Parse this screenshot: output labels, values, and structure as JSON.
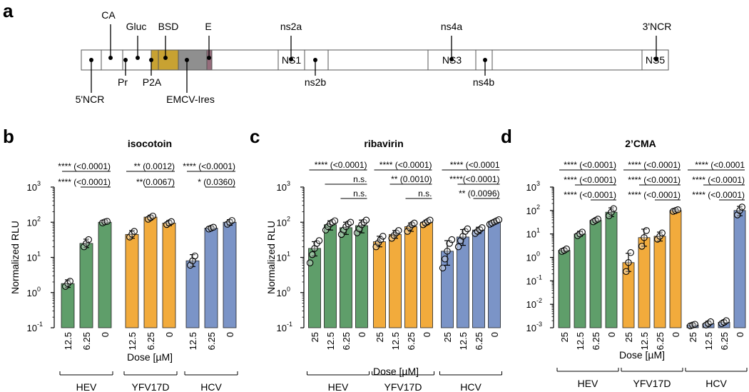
{
  "panel_labels": {
    "a": "a",
    "b": "b",
    "c": "c",
    "d": "d"
  },
  "genome": {
    "segments": [
      {
        "key": "5ncr",
        "label": "",
        "color": "#ffffff"
      },
      {
        "key": "ca",
        "label": "",
        "color": "#ffffff"
      },
      {
        "key": "pr",
        "label": "",
        "color": "#ffffff"
      },
      {
        "key": "gluc",
        "label": "",
        "color": "#c8a232"
      },
      {
        "key": "p2a",
        "label": "",
        "color": "#c8a232"
      },
      {
        "key": "bsd",
        "label": "",
        "color": "#8f8f8f"
      },
      {
        "key": "emcv",
        "label": "",
        "color": "#956c7b"
      },
      {
        "key": "e",
        "label": "",
        "color": "#ffffff"
      },
      {
        "key": "ns1",
        "label": "NS1",
        "color": "#ffffff"
      },
      {
        "key": "ns2a",
        "label": "",
        "color": "#ffffff"
      },
      {
        "key": "ns2b",
        "label": "",
        "color": "#ffffff"
      },
      {
        "key": "ns3",
        "label": "NS3",
        "color": "#ffffff"
      },
      {
        "key": "ns4a",
        "label": "",
        "color": "#ffffff"
      },
      {
        "key": "ns4b",
        "label": "",
        "color": "#ffffff"
      },
      {
        "key": "ns5",
        "label": "NS5",
        "color": "#ffffff"
      },
      {
        "key": "3ncr",
        "label": "",
        "color": "#ffffff"
      }
    ],
    "callouts": [
      {
        "label": "5'NCR",
        "dir": "down"
      },
      {
        "label": "CA",
        "dir": "up"
      },
      {
        "label": "Pr",
        "dir": "down"
      },
      {
        "label": "Gluc",
        "dir": "up"
      },
      {
        "label": "P2A",
        "dir": "down"
      },
      {
        "label": "BSD",
        "dir": "up"
      },
      {
        "label": "EMCV-Ires",
        "dir": "down"
      },
      {
        "label": "E",
        "dir": "up"
      },
      {
        "label": "ns2a",
        "dir": "up"
      },
      {
        "label": "ns2b",
        "dir": "down"
      },
      {
        "label": "ns4a",
        "dir": "up"
      },
      {
        "label": "ns4b",
        "dir": "down"
      },
      {
        "label": "3'NCR",
        "dir": "up"
      }
    ]
  },
  "colors": {
    "HEV": "#5f9e6a",
    "YFV17D": "#f2ab3c",
    "HCV": "#7b94c7"
  },
  "chart_data": [
    {
      "type": "bar",
      "panel": "b",
      "title": "isocotoin",
      "ylabel": "Normalized RLU",
      "xlabel": "Dose [µM]",
      "yscale": "log",
      "ylim": [
        0.1,
        1000
      ],
      "yticks": [
        {
          "base": "10",
          "exp": "-1"
        },
        {
          "base": "10",
          "exp": "0"
        },
        {
          "base": "10",
          "exp": "1"
        },
        {
          "base": "10",
          "exp": "2"
        },
        {
          "base": "10",
          "exp": "3"
        }
      ],
      "groups": [
        {
          "name": "HEV",
          "categories": [
            "12.5",
            "6.25",
            "0"
          ],
          "values": [
            1.8,
            25,
            100
          ],
          "errors": [
            [
              1.4,
              2.3
            ],
            [
              19,
              33
            ],
            [
              95,
              110
            ]
          ],
          "points": [
            [
              1.5,
              1.8,
              2.1
            ],
            [
              20,
              25,
              32
            ],
            [
              96,
              102,
              106
            ]
          ]
        },
        {
          "name": "YFV17D",
          "categories": [
            "12.5",
            "6.25",
            "0"
          ],
          "values": [
            45,
            140,
            95
          ],
          "errors": [
            [
              35,
              58
            ],
            [
              118,
              158
            ],
            [
              80,
              110
            ]
          ],
          "points": [
            [
              38,
              46,
              55
            ],
            [
              122,
              135,
              150
            ],
            [
              86,
              96,
              104
            ]
          ]
        },
        {
          "name": "HCV",
          "categories": [
            "12.5",
            "6.25",
            "0"
          ],
          "values": [
            8,
            68,
            100
          ],
          "errors": [
            [
              5.5,
              12
            ],
            [
              62,
              74
            ],
            [
              82,
              118
            ]
          ],
          "points": [
            [
              6,
              8,
              11
            ],
            [
              64,
              68,
              72
            ],
            [
              88,
              100,
              112
            ]
          ]
        }
      ],
      "annotations": [
        {
          "text": "**** (<0.0001)",
          "group": 0,
          "from": 0,
          "to": 2,
          "row": 0
        },
        {
          "text": "**** (<0.0001)",
          "group": 0,
          "from": 1,
          "to": 2,
          "row": 1
        },
        {
          "text": "** (0.0012)",
          "group": 1,
          "from": 0,
          "to": 2,
          "row": 0
        },
        {
          "text": "**(0.0067)",
          "group": 1,
          "from": 1,
          "to": 2,
          "row": 1
        },
        {
          "text": "**** (<0.0001)",
          "group": 2,
          "from": 0,
          "to": 2,
          "row": 0
        },
        {
          "text": "* (0.0360)",
          "group": 2,
          "from": 1,
          "to": 2,
          "row": 1
        }
      ]
    },
    {
      "type": "bar",
      "panel": "c",
      "title": "ribavirin",
      "ylabel": "Normalized RLU",
      "xlabel": "Dose [µM]",
      "yscale": "log",
      "ylim": [
        0.1,
        1000
      ],
      "yticks": [
        {
          "base": "10",
          "exp": "-1"
        },
        {
          "base": "10",
          "exp": "0"
        },
        {
          "base": "10",
          "exp": "1"
        },
        {
          "base": "10",
          "exp": "2"
        },
        {
          "base": "10",
          "exp": "3"
        }
      ],
      "groups": [
        {
          "name": "HEV",
          "categories": [
            "25",
            "12.5",
            "6.25",
            "0"
          ],
          "values": [
            18,
            85,
            70,
            80
          ],
          "errors": [
            [
              11,
              28
            ],
            [
              60,
              110
            ],
            [
              45,
              100
            ],
            [
              50,
              115
            ]
          ],
          "points": [
            [
              7,
              12,
              18,
              25,
              30
            ],
            [
              60,
              75,
              90,
              100,
              110
            ],
            [
              45,
              60,
              75,
              90,
              100
            ],
            [
              50,
              65,
              85,
              100,
              115
            ]
          ]
        },
        {
          "name": "YFV17D",
          "categories": [
            "25",
            "12.5",
            "6.25",
            "0"
          ],
          "values": [
            28,
            45,
            75,
            100
          ],
          "errors": [
            [
              20,
              40
            ],
            [
              35,
              58
            ],
            [
              55,
              95
            ],
            [
              85,
              115
            ]
          ],
          "points": [
            [
              20,
              26,
              32,
              40
            ],
            [
              35,
              42,
              50,
              58
            ],
            [
              55,
              70,
              85,
              95
            ],
            [
              85,
              95,
              105,
              115
            ]
          ]
        },
        {
          "name": "HCV",
          "categories": [
            "25",
            "12.5",
            "6.25",
            "0"
          ],
          "values": [
            15,
            38,
            60,
            100
          ],
          "errors": [
            [
              6,
              30
            ],
            [
              22,
              62
            ],
            [
              48,
              72
            ],
            [
              90,
              115
            ]
          ],
          "points": [
            [
              5,
              9,
              15,
              25,
              32
            ],
            [
              20,
              30,
              40,
              55,
              65
            ],
            [
              48,
              55,
              62,
              70
            ],
            [
              88,
              95,
              102,
              110,
              118
            ]
          ]
        }
      ],
      "annotations": [
        {
          "text": "**** (<0.0001)",
          "group": 0,
          "from": 0,
          "to": 3,
          "row": 0
        },
        {
          "text": "n.s.",
          "group": 0,
          "from": 1,
          "to": 3,
          "row": 1
        },
        {
          "text": "n.s.",
          "group": 0,
          "from": 2,
          "to": 3,
          "row": 2
        },
        {
          "text": "**** (<0.0001)",
          "group": 1,
          "from": 0,
          "to": 3,
          "row": 0
        },
        {
          "text": "** (0.0010)",
          "group": 1,
          "from": 1,
          "to": 3,
          "row": 1
        },
        {
          "text": "n.s.",
          "group": 1,
          "from": 2,
          "to": 3,
          "row": 2
        },
        {
          "text": "**** (<0.0001",
          "group": 2,
          "from": 0,
          "to": 3,
          "row": 0
        },
        {
          "text": "****(<0.0001)",
          "group": 2,
          "from": 1,
          "to": 3,
          "row": 1
        },
        {
          "text": "** (0.0096)",
          "group": 2,
          "from": 2,
          "to": 3,
          "row": 2
        }
      ]
    },
    {
      "type": "bar",
      "panel": "d",
      "title": "2’CMA",
      "ylabel": "",
      "xlabel": "Dose [µM]",
      "yscale": "log",
      "ylim": [
        0.001,
        1000
      ],
      "yticks": [
        {
          "base": "10",
          "exp": "-3"
        },
        {
          "base": "10",
          "exp": "-2"
        },
        {
          "base": "10",
          "exp": "-1"
        },
        {
          "base": "10",
          "exp": "0"
        },
        {
          "base": "10",
          "exp": "1"
        },
        {
          "base": "10",
          "exp": "2"
        },
        {
          "base": "10",
          "exp": "3"
        }
      ],
      "groups": [
        {
          "name": "HEV",
          "categories": [
            "25",
            "12.5",
            "6.25",
            "0"
          ],
          "values": [
            2,
            10,
            38,
            85
          ],
          "errors": [
            [
              1.7,
              2.4
            ],
            [
              8,
              13
            ],
            [
              32,
              45
            ],
            [
              55,
              130
            ]
          ],
          "points": [
            [
              1.8,
              2,
              2.3
            ],
            [
              8.5,
              10,
              12
            ],
            [
              33,
              38,
              43
            ],
            [
              60,
              85,
              120
            ]
          ]
        },
        {
          "name": "YFV17D",
          "categories": [
            "25",
            "12.5",
            "6.25",
            "0"
          ],
          "values": [
            0.6,
            7,
            8,
            100
          ],
          "errors": [
            [
              0.25,
              1.5
            ],
            [
              3,
              16
            ],
            [
              5,
              12
            ],
            [
              90,
              112
            ]
          ],
          "points": [
            [
              0.25,
              0.6,
              1.6
            ],
            [
              3,
              7,
              14
            ],
            [
              6,
              8,
              11
            ],
            [
              92,
              100,
              108
            ]
          ]
        },
        {
          "name": "HCV",
          "categories": [
            "25",
            "12.5",
            "6.25",
            "0"
          ],
          "values": [
            0.0013,
            0.0015,
            0.0017,
            100
          ],
          "errors": [
            [
              0.0011,
              0.0015
            ],
            [
              0.0012,
              0.0019
            ],
            [
              0.0014,
              0.0021
            ],
            [
              60,
              150
            ]
          ],
          "points": [
            [
              0.0012,
              0.0013,
              0.0014
            ],
            [
              0.0013,
              0.0015,
              0.0018
            ],
            [
              0.0015,
              0.0017,
              0.002
            ],
            [
              65,
              100,
              140
            ]
          ]
        }
      ],
      "annotations": [
        {
          "text": "**** (<0.0001)",
          "group": 0,
          "from": 0,
          "to": 3,
          "row": 0
        },
        {
          "text": "**** (<0.0001)",
          "group": 0,
          "from": 1,
          "to": 3,
          "row": 1
        },
        {
          "text": "**** (<0.0001)",
          "group": 0,
          "from": 2,
          "to": 3,
          "row": 2
        },
        {
          "text": "**** (<0.0001)",
          "group": 1,
          "from": 0,
          "to": 3,
          "row": 0
        },
        {
          "text": "**** (<0.0001)",
          "group": 1,
          "from": 1,
          "to": 3,
          "row": 1
        },
        {
          "text": "**** (<0.0001)",
          "group": 1,
          "from": 2,
          "to": 3,
          "row": 2
        },
        {
          "text": "**** (<0.0001",
          "group": 2,
          "from": 0,
          "to": 3,
          "row": 0
        },
        {
          "text": "**** (<0.0001)",
          "group": 2,
          "from": 1,
          "to": 3,
          "row": 1
        },
        {
          "text": "**** (<0.0001)",
          "group": 2,
          "from": 2,
          "to": 3,
          "row": 2
        }
      ]
    }
  ]
}
